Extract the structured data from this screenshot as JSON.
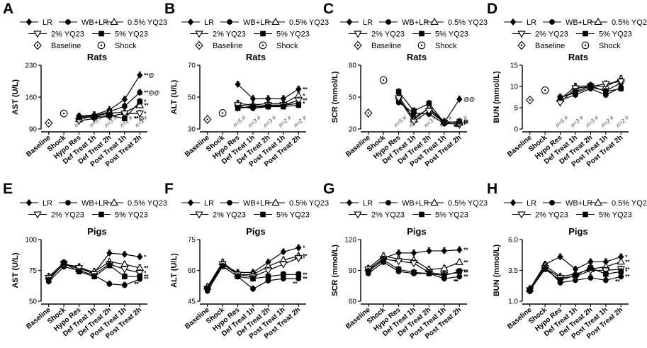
{
  "legend": {
    "lr": "LR",
    "wb_lr": "WB+LR",
    "yq05": "0.5% YQ23",
    "yq2": "2% YQ23",
    "yq5": "5% YQ23",
    "baseline": "Baseline",
    "shock": "Shock"
  },
  "legend_symbols": {
    "LR": "filled-diamond",
    "WB+LR": "filled-circle",
    "0.5% YQ23": "open-triangle-up",
    "2% YQ23": "open-triangle-down",
    "5% YQ23": "filled-square",
    "Baseline": "diamond-with-dot",
    "Shock": "circle-with-dot"
  },
  "chart_data": [
    {
      "panel": "A",
      "type": "line",
      "title": "Rats",
      "ylabel": "AST  (U/L)",
      "ylim": [
        90,
        230
      ],
      "yticks": [
        "90",
        "160",
        "230"
      ],
      "categories": [
        "Baseline",
        "Shock",
        "Hypo Res",
        "Def Treat 1h",
        "Def Treat 2h",
        "Post Treat 1h",
        "Post Treat 2h"
      ],
      "pre_points": [
        {
          "name": "Baseline",
          "value": 103
        },
        {
          "name": "Shock",
          "value": 124
        }
      ],
      "series": [
        {
          "name": "LR",
          "values": [
            null,
            null,
            118,
            121,
            132,
            155,
            208
          ]
        },
        {
          "name": "WB+LR",
          "values": [
            null,
            null,
            117,
            119,
            128,
            140,
            170
          ]
        },
        {
          "name": "0.5% YQ23",
          "values": [
            null,
            null,
            112,
            118,
            125,
            127,
            142
          ]
        },
        {
          "name": "2% YQ23",
          "values": [
            null,
            null,
            108,
            113,
            118,
            124,
            124
          ]
        },
        {
          "name": "5% YQ23",
          "values": [
            null,
            null,
            116,
            116,
            120,
            113,
            150
          ]
        }
      ],
      "n_labels": [
        "n=5 #",
        "n=3 #",
        "n=3 #",
        "n=2 #",
        "n=2 #"
      ],
      "annotations": [
        "**@",
        "**@@",
        "*",
        "**",
        "*",
        "**",
        "**@",
        "**",
        "*"
      ]
    },
    {
      "panel": "B",
      "type": "line",
      "title": "Rats",
      "ylabel": "ALT  (U/L)",
      "ylim": [
        30,
        70
      ],
      "yticks": [
        "30",
        "50",
        "70"
      ],
      "categories": [
        "Baseline",
        "Shock",
        "Hypo Res",
        "Def Treat 1h",
        "Def Treat 2h",
        "Post Treat 1h",
        "Post Treat 2h"
      ],
      "pre_points": [
        {
          "name": "Baseline",
          "value": 36
        },
        {
          "name": "Shock",
          "value": 40
        }
      ],
      "series": [
        {
          "name": "LR",
          "values": [
            null,
            null,
            58,
            49,
            49,
            49,
            55
          ]
        },
        {
          "name": "WB+LR",
          "values": [
            null,
            null,
            44,
            43,
            44,
            45,
            46
          ]
        },
        {
          "name": "0.5% YQ23",
          "values": [
            null,
            null,
            46,
            45,
            46,
            46,
            51
          ]
        },
        {
          "name": "2% YQ23",
          "values": [
            null,
            null,
            45,
            44,
            45,
            45,
            48
          ]
        },
        {
          "name": "5% YQ23",
          "values": [
            null,
            null,
            43,
            44,
            44,
            44,
            45
          ]
        }
      ],
      "n_labels": [
        "n=5 #",
        "n=3 #",
        "n=3 #",
        "n=2 #",
        "n=2 #"
      ],
      "annotations": [
        "**",
        "*",
        "**",
        "*"
      ]
    },
    {
      "panel": "C",
      "type": "line",
      "title": "Rats",
      "ylabel": "SCR  (mmol/L)",
      "ylim": [
        20,
        80
      ],
      "yticks": [
        "20",
        "50",
        "80"
      ],
      "categories": [
        "Baseline",
        "Shock",
        "Hypo Res",
        "Def Treat 1h",
        "Def Treat 2h",
        "Post Treat 1h",
        "Post Treat 2h"
      ],
      "pre_points": [
        {
          "name": "Baseline",
          "value": 35
        },
        {
          "name": "Shock",
          "value": 66
        }
      ],
      "series": [
        {
          "name": "LR",
          "values": [
            null,
            null,
            47,
            31,
            39,
            26,
            48
          ]
        },
        {
          "name": "WB+LR",
          "values": [
            null,
            null,
            45,
            35,
            34,
            25,
            25
          ]
        },
        {
          "name": "0.5% YQ23",
          "values": [
            null,
            null,
            51,
            29,
            40,
            27,
            26
          ]
        },
        {
          "name": "2% YQ23",
          "values": [
            null,
            null,
            49,
            27,
            37,
            26,
            24
          ]
        },
        {
          "name": "5% YQ23",
          "values": [
            null,
            null,
            55,
            37,
            44,
            26,
            27
          ]
        }
      ],
      "n_labels": [
        "n=5 #",
        "n=3 #",
        "n=3 #",
        "n=2 #",
        "n=2 #"
      ],
      "annotations": [
        "@@",
        "**",
        "**",
        "**",
        "*",
        "**",
        "***"
      ]
    },
    {
      "panel": "D",
      "type": "line",
      "title": "Rats",
      "ylabel": "BUN  (mmol/L)",
      "ylim": [
        0,
        15
      ],
      "yticks": [
        "0",
        "5",
        "10",
        "15"
      ],
      "categories": [
        "Baseline",
        "Shock",
        "Hypo Res",
        "Def Treat 1h",
        "Def Treat 2h",
        "Post Treat 1h",
        "Post Treat 2h"
      ],
      "pre_points": [
        {
          "name": "Baseline",
          "value": 6.8
        },
        {
          "name": "Shock",
          "value": 9.1
        }
      ],
      "series": [
        {
          "name": "LR",
          "values": [
            null,
            null,
            7.5,
            8.5,
            9.8,
            9.0,
            10.8
          ]
        },
        {
          "name": "WB+LR",
          "values": [
            null,
            null,
            6.8,
            8.0,
            9.5,
            8.0,
            9.8
          ]
        },
        {
          "name": "0.5% YQ23",
          "values": [
            null,
            null,
            7.0,
            10.0,
            10.2,
            10.0,
            11.8
          ]
        },
        {
          "name": "2% YQ23",
          "values": [
            null,
            null,
            6.2,
            9.6,
            10.0,
            10.6,
            11.2
          ]
        },
        {
          "name": "5% YQ23",
          "values": [
            null,
            null,
            7.3,
            8.8,
            10.2,
            8.8,
            9.5
          ]
        }
      ],
      "n_labels": [
        "n=5 #",
        "n=3 #",
        "n=3 #",
        "n=2 #",
        "n=2 #"
      ],
      "annotations": []
    },
    {
      "panel": "E",
      "type": "line",
      "title": "Pigs",
      "ylabel": "AST  (U/L)",
      "ylim": [
        50,
        100
      ],
      "yticks": [
        "50",
        "75",
        "100"
      ],
      "categories": [
        "Baseline",
        "Shock",
        "Hypo Res",
        "Def Treat 1h",
        "Def Treat 2h",
        "Post Treat 1h",
        "Post Treat 2h"
      ],
      "series": [
        {
          "name": "LR",
          "values": [
            68,
            80,
            78,
            73,
            89,
            88,
            86
          ]
        },
        {
          "name": "WB+LR",
          "values": [
            66,
            78,
            75,
            71,
            64,
            63,
            68
          ]
        },
        {
          "name": "0.5% YQ23",
          "values": [
            70,
            81,
            76,
            74,
            82,
            80,
            77
          ]
        },
        {
          "name": "2% YQ23",
          "values": [
            69,
            80,
            77,
            72,
            80,
            76,
            73
          ]
        },
        {
          "name": "5% YQ23",
          "values": [
            67,
            81,
            74,
            70,
            79,
            70,
            70
          ]
        }
      ],
      "annotations": [
        "*",
        "**",
        "*",
        "**",
        "**",
        "**",
        "**"
      ]
    },
    {
      "panel": "F",
      "type": "line",
      "title": "Pigs",
      "ylabel": "ALT  (U/L)",
      "ylim": [
        45,
        75
      ],
      "yticks": [
        "45",
        "60",
        "75"
      ],
      "categories": [
        "Baseline",
        "Shock",
        "Hypo Res",
        "Def Treat 1h",
        "Def Treat 2h",
        "Post Treat 1h",
        "Post Treat 2h"
      ],
      "series": [
        {
          "name": "LR",
          "values": [
            52,
            63,
            59,
            59,
            64,
            69,
            71
          ]
        },
        {
          "name": "WB+LR",
          "values": [
            50,
            62,
            57,
            51,
            55,
            56,
            56
          ]
        },
        {
          "name": "0.5% YQ23",
          "values": [
            52,
            64,
            58,
            58,
            62,
            65,
            67
          ]
        },
        {
          "name": "2% YQ23",
          "values": [
            51,
            63,
            58,
            57,
            60,
            63,
            66
          ]
        },
        {
          "name": "5% YQ23",
          "values": [
            51,
            62,
            57,
            56,
            57,
            58,
            58
          ]
        }
      ],
      "annotations": [
        "*",
        "**",
        "*",
        "**",
        "**",
        "**"
      ]
    },
    {
      "panel": "G",
      "type": "line",
      "title": "Pigs",
      "ylabel": "SCR  (mmol/L)",
      "ylim": [
        60,
        120
      ],
      "yticks": [
        "60",
        "90",
        "120"
      ],
      "categories": [
        "Baseline",
        "Shock",
        "Hypo Res",
        "Def Treat 1h",
        "Def Treat 2h",
        "Post Treat 1h",
        "Post Treat 2h"
      ],
      "series": [
        {
          "name": "LR",
          "values": [
            90,
            102,
            107,
            107,
            109,
            109,
            110
          ]
        },
        {
          "name": "WB+LR",
          "values": [
            87,
            98,
            89,
            87,
            87,
            82,
            84
          ]
        },
        {
          "name": "0.5% YQ23",
          "values": [
            92,
            104,
            101,
            100,
            91,
            92,
            98
          ]
        },
        {
          "name": "2% YQ23",
          "values": [
            91,
            101,
            99,
            97,
            88,
            86,
            88
          ]
        },
        {
          "name": "5% YQ23",
          "values": [
            89,
            100,
            91,
            88,
            87,
            85,
            89
          ]
        }
      ],
      "annotations": [
        "**",
        "**",
        "**",
        "**",
        "**",
        "**",
        "**",
        "**",
        "**"
      ]
    },
    {
      "panel": "H",
      "type": "line",
      "title": "Pigs",
      "ylabel": "BUN  (mmol/L)",
      "ylim": [
        1.0,
        6.0
      ],
      "yticks": [
        "1.0",
        "3.5",
        "6.0"
      ],
      "categories": [
        "Baseline",
        "Shock",
        "Hypo Res",
        "Def Treat 1h",
        "Def Treat 2h",
        "Post Treat 1h",
        "Post Treat 2h"
      ],
      "series": [
        {
          "name": "LR",
          "values": [
            2.0,
            4.0,
            4.6,
            3.6,
            4.2,
            4.2,
            4.6
          ]
        },
        {
          "name": "WB+LR",
          "values": [
            1.8,
            3.8,
            2.5,
            2.7,
            2.9,
            2.7,
            3.0
          ]
        },
        {
          "name": "0.5% YQ23",
          "values": [
            2.0,
            3.9,
            3.0,
            3.2,
            3.6,
            3.8,
            4.2
          ]
        },
        {
          "name": "2% YQ23",
          "values": [
            1.9,
            3.7,
            2.9,
            3.0,
            3.5,
            3.5,
            3.6
          ]
        },
        {
          "name": "5% YQ23",
          "values": [
            1.9,
            3.6,
            2.7,
            3.1,
            3.7,
            3.2,
            3.4
          ]
        }
      ],
      "annotations": [
        "*",
        "**",
        "**",
        "*",
        "**",
        "*",
        "**"
      ]
    }
  ]
}
